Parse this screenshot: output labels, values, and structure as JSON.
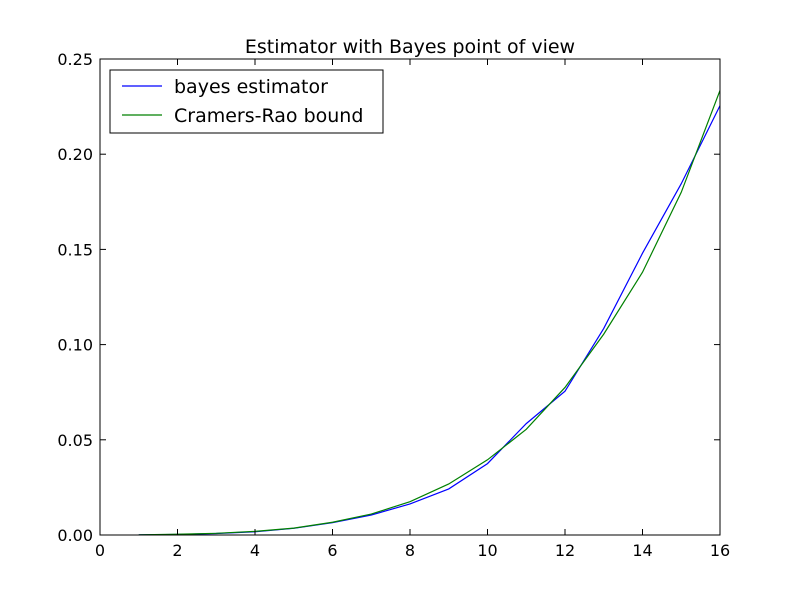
{
  "chart_data": {
    "type": "line",
    "title": "Estimator with Bayes point of view",
    "xlabel": "",
    "ylabel": "",
    "xlim": [
      0,
      16
    ],
    "ylim": [
      0,
      0.25
    ],
    "xticks": [
      0,
      2,
      4,
      6,
      8,
      10,
      12,
      14,
      16
    ],
    "xtick_labels": [
      "0",
      "2",
      "4",
      "6",
      "8",
      "10",
      "12",
      "14",
      "16"
    ],
    "yticks": [
      0,
      0.05,
      0.1,
      0.15,
      0.2,
      0.25
    ],
    "ytick_labels": [
      "0.00",
      "0.05",
      "0.10",
      "0.15",
      "0.20",
      "0.25"
    ],
    "grid": false,
    "legend_position": "top-left",
    "x": [
      1,
      2,
      3,
      4,
      5,
      6,
      7,
      8,
      9,
      10,
      11,
      12,
      13,
      14,
      15,
      16
    ],
    "series": [
      {
        "name": "bayes estimator",
        "color": "#0000ff",
        "values": [
          0.0001,
          0.0003,
          0.0008,
          0.0017,
          0.0035,
          0.0065,
          0.0105,
          0.0163,
          0.0242,
          0.0375,
          0.0585,
          0.0755,
          0.1085,
          0.148,
          0.1845,
          0.2255
        ]
      },
      {
        "name": "Cramers-Rao bound",
        "color": "#008000",
        "values": [
          0.0001,
          0.0004,
          0.0009,
          0.0019,
          0.0036,
          0.0067,
          0.011,
          0.0175,
          0.0268,
          0.0395,
          0.0555,
          0.0775,
          0.1055,
          0.138,
          0.18,
          0.2335
        ]
      }
    ]
  }
}
